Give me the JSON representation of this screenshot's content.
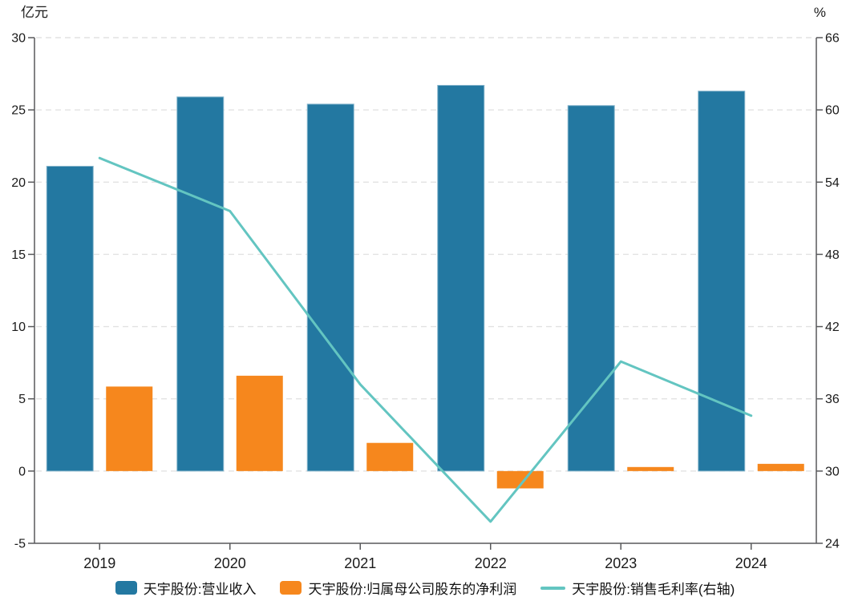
{
  "chart_data": {
    "type": "combo-bar-line-dual-axis",
    "title": "",
    "categories": [
      "2019",
      "2020",
      "2021",
      "2022",
      "2023",
      "2024"
    ],
    "left_axis": {
      "label": "亿元",
      "min": -5,
      "max": 30,
      "step": 5,
      "tick_labels": [
        "30",
        "25",
        "20",
        "15",
        "10",
        "5",
        "0",
        "-5"
      ]
    },
    "right_axis": {
      "label": "%",
      "min": 24,
      "max": 66,
      "step": 6,
      "tick_labels": [
        "66",
        "60",
        "54",
        "48",
        "42",
        "36",
        "30",
        "24"
      ]
    },
    "grid": "horizontal-dashed",
    "legend_position": "bottom-center",
    "bar_series": [
      {
        "name": "天宇股份:营业收入",
        "axis": "left",
        "color": "#2378A1",
        "border": "#86B5CC",
        "values": [
          21.1,
          25.9,
          25.4,
          26.7,
          25.3,
          26.3
        ]
      },
      {
        "name": "天宇股份:归属母公司股东的净利润",
        "axis": "left",
        "color": "#F6871D",
        "border": "#F9B express066",
        "values": [
          5.85,
          6.6,
          1.95,
          -1.2,
          0.28,
          0.5
        ]
      }
    ],
    "line_series": [
      {
        "name": "天宇股份:销售毛利率(右轴)",
        "axis": "right",
        "color": "#63C5C1",
        "values": [
          56.0,
          51.6,
          37.2,
          25.8,
          39.1,
          34.6
        ]
      }
    ]
  },
  "colors": {
    "axis": "#58595B",
    "tick_text": "#1a1a1a",
    "gridline": "#E2E2E2",
    "background": "#FFFFFF"
  }
}
